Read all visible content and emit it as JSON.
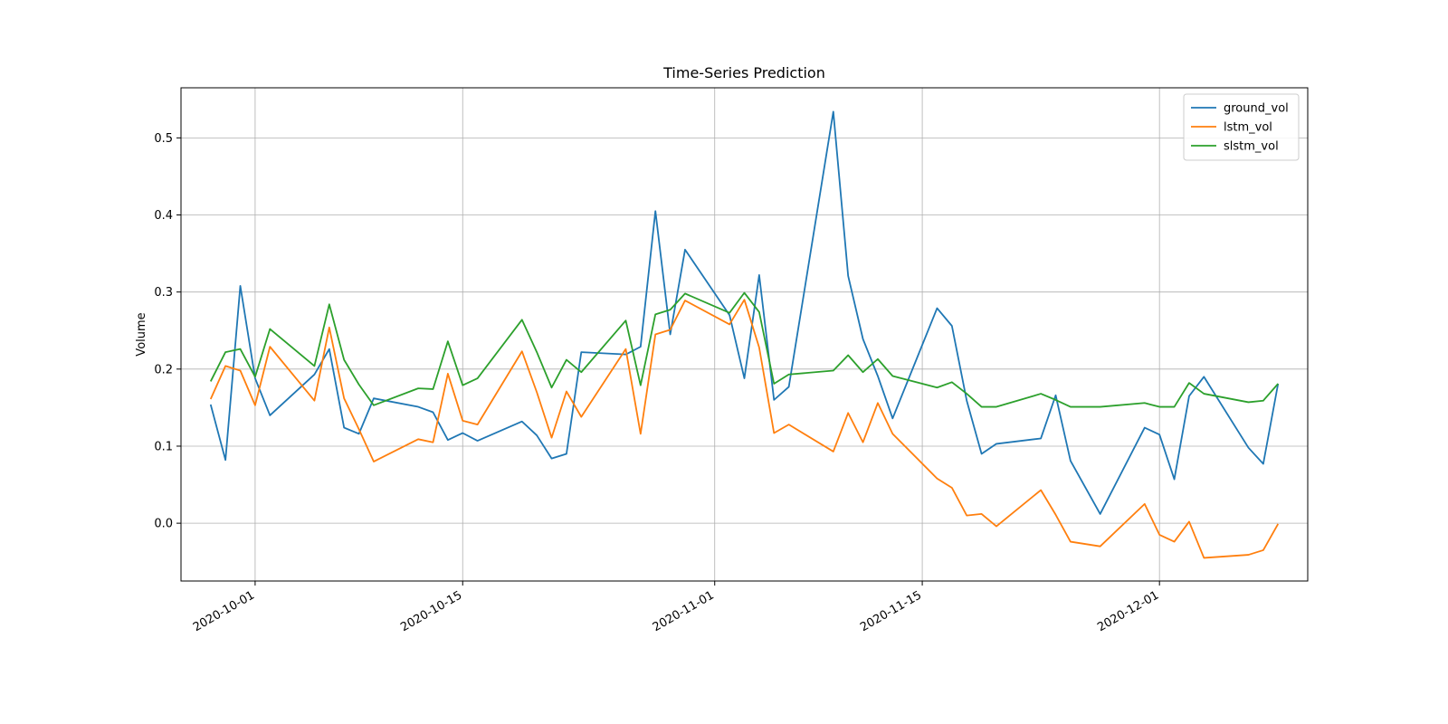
{
  "chart_data": {
    "type": "line",
    "title": "Time-Series Prediction",
    "xlabel": "",
    "ylabel": "Volume",
    "x_type": "date",
    "xlim": [
      "2020-09-26",
      "2020-12-11"
    ],
    "ylim": [
      -0.075,
      0.565
    ],
    "x_ticks": [
      "2020-10-01",
      "2020-10-15",
      "2020-11-01",
      "2020-11-15",
      "2020-12-01"
    ],
    "y_ticks": [
      0.0,
      0.1,
      0.2,
      0.3,
      0.4,
      0.5
    ],
    "y_tick_labels": [
      "0.0",
      "0.1",
      "0.2",
      "0.3",
      "0.4",
      "0.5"
    ],
    "grid": true,
    "legend_position": "top-right",
    "x": [
      "2020-09-28",
      "2020-09-29",
      "2020-09-30",
      "2020-10-01",
      "2020-10-02",
      "2020-10-05",
      "2020-10-06",
      "2020-10-07",
      "2020-10-08",
      "2020-10-09",
      "2020-10-12",
      "2020-10-13",
      "2020-10-14",
      "2020-10-15",
      "2020-10-16",
      "2020-10-19",
      "2020-10-20",
      "2020-10-21",
      "2020-10-22",
      "2020-10-23",
      "2020-10-26",
      "2020-10-27",
      "2020-10-28",
      "2020-10-29",
      "2020-10-30",
      "2020-11-02",
      "2020-11-03",
      "2020-11-04",
      "2020-11-05",
      "2020-11-06",
      "2020-11-09",
      "2020-11-10",
      "2020-11-11",
      "2020-11-12",
      "2020-11-13",
      "2020-11-16",
      "2020-11-17",
      "2020-11-18",
      "2020-11-19",
      "2020-11-20",
      "2020-11-23",
      "2020-11-24",
      "2020-11-25",
      "2020-11-27",
      "2020-11-30",
      "2020-12-01",
      "2020-12-02",
      "2020-12-03",
      "2020-12-04",
      "2020-12-07",
      "2020-12-08",
      "2020-12-09"
    ],
    "series": [
      {
        "name": "ground_vol",
        "color": "#1f77b4",
        "values": [
          0.154,
          0.082,
          0.308,
          0.188,
          0.14,
          0.193,
          0.226,
          0.124,
          0.116,
          0.162,
          0.151,
          0.144,
          0.108,
          0.117,
          0.107,
          0.132,
          0.114,
          0.084,
          0.09,
          0.222,
          0.219,
          0.229,
          0.405,
          0.245,
          0.355,
          0.27,
          0.188,
          0.322,
          0.16,
          0.177,
          0.534,
          0.321,
          0.239,
          0.191,
          0.136,
          0.279,
          0.256,
          0.159,
          0.09,
          0.103,
          0.11,
          0.166,
          0.081,
          0.012,
          0.124,
          0.115,
          0.057,
          0.165,
          0.19,
          0.098,
          0.077,
          0.181
        ]
      },
      {
        "name": "lstm_vol",
        "color": "#ff7f0e",
        "values": [
          0.161,
          0.204,
          0.198,
          0.153,
          0.229,
          0.159,
          0.254,
          0.162,
          0.122,
          0.08,
          0.109,
          0.105,
          0.194,
          0.133,
          0.128,
          0.223,
          0.17,
          0.111,
          0.171,
          0.138,
          0.226,
          0.116,
          0.245,
          0.251,
          0.289,
          0.258,
          0.29,
          0.228,
          0.117,
          0.128,
          0.093,
          0.143,
          0.105,
          0.156,
          0.116,
          0.058,
          0.046,
          0.01,
          0.012,
          -0.004,
          0.043,
          0.011,
          -0.024,
          -0.03,
          0.025,
          -0.015,
          -0.024,
          0.002,
          -0.045,
          -0.041,
          -0.035,
          -0.001
        ]
      },
      {
        "name": "slstm_vol",
        "color": "#2ca02c",
        "values": [
          0.184,
          0.222,
          0.226,
          0.19,
          0.252,
          0.204,
          0.284,
          0.212,
          0.18,
          0.153,
          0.175,
          0.174,
          0.236,
          0.179,
          0.188,
          0.264,
          0.222,
          0.176,
          0.212,
          0.196,
          0.263,
          0.179,
          0.271,
          0.277,
          0.298,
          0.273,
          0.299,
          0.274,
          0.181,
          0.193,
          0.198,
          0.218,
          0.196,
          0.213,
          0.191,
          0.176,
          0.183,
          0.168,
          0.151,
          0.151,
          0.168,
          0.16,
          0.151,
          0.151,
          0.156,
          0.151,
          0.151,
          0.182,
          0.168,
          0.157,
          0.159,
          0.181
        ]
      }
    ]
  }
}
